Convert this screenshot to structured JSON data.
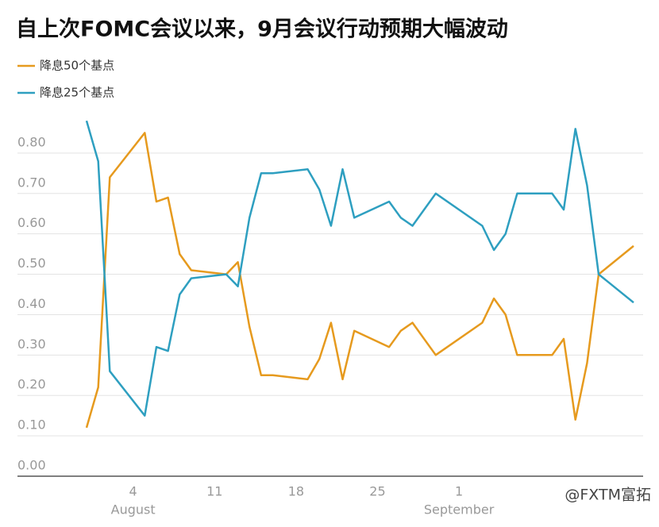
{
  "chart_data": {
    "type": "line",
    "title": "自上次FOMC会议以来，9月会议行动预期大幅波动",
    "x": [
      "07-31",
      "08-01",
      "08-02",
      "08-05",
      "08-06",
      "08-07",
      "08-08",
      "08-09",
      "08-12",
      "08-13",
      "08-14",
      "08-15",
      "08-16",
      "08-19",
      "08-20",
      "08-21",
      "08-22",
      "08-23",
      "08-26",
      "08-27",
      "08-28",
      "08-30",
      "09-03",
      "09-04",
      "09-05",
      "09-06",
      "09-09",
      "09-10",
      "09-11",
      "09-12",
      "09-13",
      "09-16"
    ],
    "series": [
      {
        "name": "降息50个基点",
        "color": "#e69a1e",
        "values": [
          0.12,
          0.22,
          0.74,
          0.85,
          0.68,
          0.69,
          0.55,
          0.51,
          0.5,
          0.53,
          0.37,
          0.25,
          0.25,
          0.24,
          0.29,
          0.38,
          0.24,
          0.36,
          0.32,
          0.36,
          0.38,
          0.3,
          0.38,
          0.44,
          0.4,
          0.3,
          0.3,
          0.34,
          0.14,
          0.28,
          0.5,
          0.57
        ]
      },
      {
        "name": "降息25个基点",
        "color": "#2e9fc0",
        "values": [
          0.88,
          0.78,
          0.26,
          0.15,
          0.32,
          0.31,
          0.45,
          0.49,
          0.5,
          0.47,
          0.64,
          0.75,
          0.75,
          0.76,
          0.71,
          0.62,
          0.76,
          0.64,
          0.68,
          0.64,
          0.62,
          0.7,
          0.62,
          0.56,
          0.6,
          0.7,
          0.7,
          0.66,
          0.86,
          0.72,
          0.5,
          0.43
        ]
      }
    ],
    "xlim": [
      "07-31",
      "09-16"
    ],
    "xticks": [
      {
        "value": "08-04",
        "label": "4"
      },
      {
        "value": "08-11",
        "label": "11"
      },
      {
        "value": "08-18",
        "label": "18"
      },
      {
        "value": "08-25",
        "label": "25"
      },
      {
        "value": "09-01",
        "label": "1"
      }
    ],
    "x_month_labels": [
      {
        "value": "08-04",
        "label": "August"
      },
      {
        "value": "09-01",
        "label": "September"
      }
    ],
    "ylim": [
      0,
      0.9
    ],
    "yticks": [
      {
        "value": 0,
        "label": "0.00"
      },
      {
        "value": 0.1,
        "label": "0.10"
      },
      {
        "value": 0.2,
        "label": "0.20"
      },
      {
        "value": 0.3,
        "label": "0.30"
      },
      {
        "value": 0.4,
        "label": "0.40"
      },
      {
        "value": 0.5,
        "label": "0.50"
      },
      {
        "value": 0.6,
        "label": "0.60"
      },
      {
        "value": 0.7,
        "label": "0.70"
      },
      {
        "value": 0.8,
        "label": "0.80"
      }
    ],
    "grid": true,
    "legend": "top-left",
    "watermark": "@FXTM富拓"
  }
}
